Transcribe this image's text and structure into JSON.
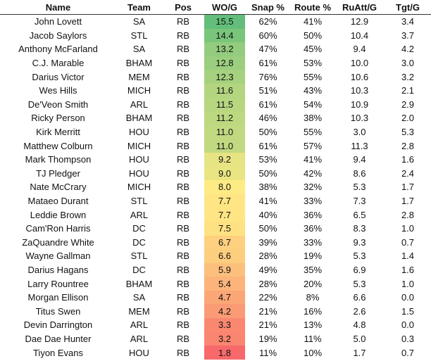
{
  "table": {
    "header": [
      "Name",
      "Team",
      "Pos",
      "WO/G",
      "Snap %",
      "Route %",
      "RuAtt/G",
      "Tgt/G"
    ],
    "rows": [
      [
        "John Lovett",
        "SA",
        "RB",
        "15.5",
        "62%",
        "41%",
        "12.9",
        "3.4"
      ],
      [
        "Jacob Saylors",
        "STL",
        "RB",
        "14.4",
        "60%",
        "50%",
        "10.4",
        "3.7"
      ],
      [
        "Anthony McFarland",
        "SA",
        "RB",
        "13.2",
        "47%",
        "45%",
        "9.4",
        "4.2"
      ],
      [
        "C.J. Marable",
        "BHAM",
        "RB",
        "12.8",
        "61%",
        "53%",
        "10.0",
        "3.0"
      ],
      [
        "Darius Victor",
        "MEM",
        "RB",
        "12.3",
        "76%",
        "55%",
        "10.6",
        "3.2"
      ],
      [
        "Wes Hills",
        "MICH",
        "RB",
        "11.6",
        "51%",
        "43%",
        "10.3",
        "2.1"
      ],
      [
        "De'Veon Smith",
        "ARL",
        "RB",
        "11.5",
        "61%",
        "54%",
        "10.9",
        "2.9"
      ],
      [
        "Ricky Person",
        "BHAM",
        "RB",
        "11.2",
        "46%",
        "38%",
        "10.3",
        "2.0"
      ],
      [
        "Kirk Merritt",
        "HOU",
        "RB",
        "11.0",
        "50%",
        "55%",
        "3.0",
        "5.3"
      ],
      [
        "Matthew Colburn",
        "MICH",
        "RB",
        "11.0",
        "61%",
        "57%",
        "11.3",
        "2.8"
      ],
      [
        "Mark Thompson",
        "HOU",
        "RB",
        "9.2",
        "53%",
        "41%",
        "9.4",
        "1.6"
      ],
      [
        "TJ Pledger",
        "HOU",
        "RB",
        "9.0",
        "50%",
        "42%",
        "8.6",
        "2.4"
      ],
      [
        "Nate McCrary",
        "MICH",
        "RB",
        "8.0",
        "38%",
        "32%",
        "5.3",
        "1.7"
      ],
      [
        "Mataeo Durant",
        "STL",
        "RB",
        "7.7",
        "41%",
        "33%",
        "7.3",
        "1.7"
      ],
      [
        "Leddie Brown",
        "ARL",
        "RB",
        "7.7",
        "40%",
        "36%",
        "6.5",
        "2.8"
      ],
      [
        "Cam'Ron Harris",
        "DC",
        "RB",
        "7.5",
        "50%",
        "36%",
        "8.3",
        "1.0"
      ],
      [
        "ZaQuandre White",
        "DC",
        "RB",
        "6.7",
        "39%",
        "33%",
        "9.3",
        "0.7"
      ],
      [
        "Wayne Gallman",
        "STL",
        "RB",
        "6.6",
        "28%",
        "19%",
        "5.3",
        "1.4"
      ],
      [
        "Darius Hagans",
        "DC",
        "RB",
        "5.9",
        "49%",
        "35%",
        "6.9",
        "1.6"
      ],
      [
        "Larry Rountree",
        "BHAM",
        "RB",
        "5.4",
        "28%",
        "20%",
        "5.3",
        "1.0"
      ],
      [
        "Morgan Ellison",
        "SA",
        "RB",
        "4.7",
        "22%",
        "8%",
        "6.6",
        "0.0"
      ],
      [
        "Titus Swen",
        "MEM",
        "RB",
        "4.2",
        "21%",
        "16%",
        "2.6",
        "1.5"
      ],
      [
        "Devin Darrington",
        "ARL",
        "RB",
        "3.3",
        "21%",
        "13%",
        "4.8",
        "0.0"
      ],
      [
        "Dae Dae Hunter",
        "ARL",
        "RB",
        "3.2",
        "19%",
        "11%",
        "5.0",
        "0.3"
      ],
      [
        "Tiyon Evans",
        "HOU",
        "RB",
        "1.8",
        "11%",
        "10%",
        "1.7",
        "0.7"
      ]
    ]
  }
}
